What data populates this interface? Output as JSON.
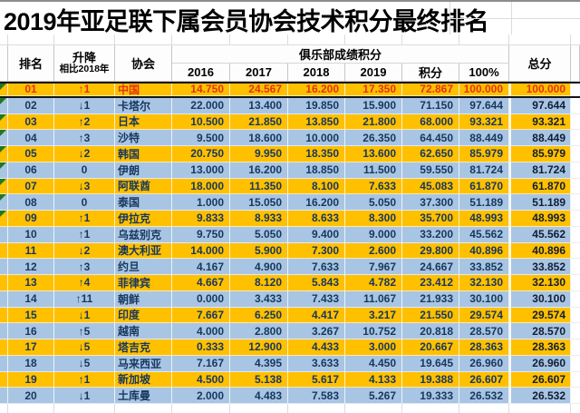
{
  "title": "2019年亚足联下属会员协会技术积分最终排名",
  "table": {
    "headers": {
      "rank": "排名",
      "change_line1": "升降",
      "change_line2": "相比2018年",
      "association": "协会",
      "club_points_group": "俱乐部成绩积分",
      "year_2016": "2016",
      "year_2017": "2017",
      "year_2018": "2018",
      "year_2019": "2019",
      "points": "积分",
      "percent": "100%",
      "total": "总分"
    },
    "rows": [
      {
        "rank": "01",
        "change": "↑1",
        "association": "中国",
        "y2016": "14.750",
        "y2017": "24.567",
        "y2018": "16.200",
        "y2019": "17.350",
        "points": "72.867",
        "percent": "100.000",
        "total": "100.000",
        "marker": true
      },
      {
        "rank": "02",
        "change": "↓1",
        "association": "卡塔尔",
        "y2016": "22.000",
        "y2017": "13.400",
        "y2018": "19.850",
        "y2019": "15.900",
        "points": "71.150",
        "percent": "97.644",
        "total": "97.644",
        "marker": true
      },
      {
        "rank": "03",
        "change": "↑2",
        "association": "日本",
        "y2016": "10.500",
        "y2017": "21.850",
        "y2018": "13.850",
        "y2019": "21.800",
        "points": "68.000",
        "percent": "93.321",
        "total": "93.321",
        "marker": true
      },
      {
        "rank": "04",
        "change": "↑3",
        "association": "沙特",
        "y2016": "9.500",
        "y2017": "18.600",
        "y2018": "10.000",
        "y2019": "26.350",
        "points": "64.450",
        "percent": "88.449",
        "total": "88.449",
        "marker": true
      },
      {
        "rank": "05",
        "change": "↓2",
        "association": "韩国",
        "y2016": "20.750",
        "y2017": "9.950",
        "y2018": "18.350",
        "y2019": "13.600",
        "points": "62.650",
        "percent": "85.979",
        "total": "85.979",
        "marker": true
      },
      {
        "rank": "06",
        "change": "0",
        "association": "伊朗",
        "y2016": "13.000",
        "y2017": "16.200",
        "y2018": "18.850",
        "y2019": "11.500",
        "points": "59.550",
        "percent": "81.724",
        "total": "81.724",
        "marker": true
      },
      {
        "rank": "07",
        "change": "↓3",
        "association": "阿联酋",
        "y2016": "18.000",
        "y2017": "11.350",
        "y2018": "8.100",
        "y2019": "7.633",
        "points": "45.083",
        "percent": "61.870",
        "total": "61.870",
        "marker": true
      },
      {
        "rank": "08",
        "change": "0",
        "association": "泰国",
        "y2016": "1.000",
        "y2017": "15.050",
        "y2018": "16.200",
        "y2019": "5.050",
        "points": "37.300",
        "percent": "51.189",
        "total": "51.189",
        "marker": true
      },
      {
        "rank": "09",
        "change": "↑1",
        "association": "伊拉克",
        "y2016": "9.833",
        "y2017": "8.933",
        "y2018": "8.633",
        "y2019": "8.300",
        "points": "35.700",
        "percent": "48.993",
        "total": "48.993",
        "marker": true
      },
      {
        "rank": "10",
        "change": "↑1",
        "association": "乌兹别克",
        "y2016": "9.750",
        "y2017": "5.050",
        "y2018": "9.400",
        "y2019": "9.000",
        "points": "33.200",
        "percent": "45.562",
        "total": "45.562",
        "marker": false
      },
      {
        "rank": "11",
        "change": "↓2",
        "association": "澳大利亚",
        "y2016": "14.000",
        "y2017": "5.900",
        "y2018": "7.300",
        "y2019": "2.600",
        "points": "29.800",
        "percent": "40.896",
        "total": "40.896",
        "marker": false
      },
      {
        "rank": "12",
        "change": "↑3",
        "association": "约旦",
        "y2016": "4.167",
        "y2017": "4.900",
        "y2018": "7.633",
        "y2019": "7.967",
        "points": "24.667",
        "percent": "33.852",
        "total": "33.852",
        "marker": false
      },
      {
        "rank": "13",
        "change": "↑4",
        "association": "菲律宾",
        "y2016": "4.667",
        "y2017": "8.120",
        "y2018": "5.843",
        "y2019": "4.782",
        "points": "23.412",
        "percent": "32.130",
        "total": "32.130",
        "marker": false
      },
      {
        "rank": "14",
        "change": "↑11",
        "association": "朝鲜",
        "y2016": "0.000",
        "y2017": "3.433",
        "y2018": "7.433",
        "y2019": "11.067",
        "points": "21.933",
        "percent": "30.100",
        "total": "30.100",
        "marker": false
      },
      {
        "rank": "15",
        "change": "↓1",
        "association": "印度",
        "y2016": "7.667",
        "y2017": "6.250",
        "y2018": "4.417",
        "y2019": "3.217",
        "points": "21.550",
        "percent": "29.574",
        "total": "29.574",
        "marker": false
      },
      {
        "rank": "16",
        "change": "↑5",
        "association": "越南",
        "y2016": "4.000",
        "y2017": "2.800",
        "y2018": "3.267",
        "y2019": "10.752",
        "points": "20.818",
        "percent": "28.570",
        "total": "28.570",
        "marker": false
      },
      {
        "rank": "17",
        "change": "↓5",
        "association": "塔吉克",
        "y2016": "0.333",
        "y2017": "12.900",
        "y2018": "4.433",
        "y2019": "3.000",
        "points": "20.667",
        "percent": "28.363",
        "total": "28.363",
        "marker": false
      },
      {
        "rank": "18",
        "change": "↓5",
        "association": "马来西亚",
        "y2016": "7.167",
        "y2017": "4.395",
        "y2018": "3.633",
        "y2019": "4.450",
        "points": "19.645",
        "percent": "26.960",
        "total": "26.960",
        "marker": false
      },
      {
        "rank": "19",
        "change": "↑1",
        "association": "新加坡",
        "y2016": "4.500",
        "y2017": "5.138",
        "y2018": "5.617",
        "y2019": "4.133",
        "points": "19.388",
        "percent": "26.607",
        "total": "26.607",
        "marker": false
      },
      {
        "rank": "20",
        "change": "↓1",
        "association": "土库曼",
        "y2016": "2.000",
        "y2017": "4.483",
        "y2018": "7.583",
        "y2019": "5.267",
        "points": "19.333",
        "percent": "26.532",
        "total": "26.532",
        "marker": false
      }
    ]
  },
  "colors": {
    "row-orange": "#FFC000",
    "row-blue": "#A9C5E4",
    "text-navy": "#17375E",
    "text-red": "#E2330D",
    "text-total": "#101D33",
    "marker-green": "#1E7A1E",
    "grid": "#C6C6C6"
  }
}
